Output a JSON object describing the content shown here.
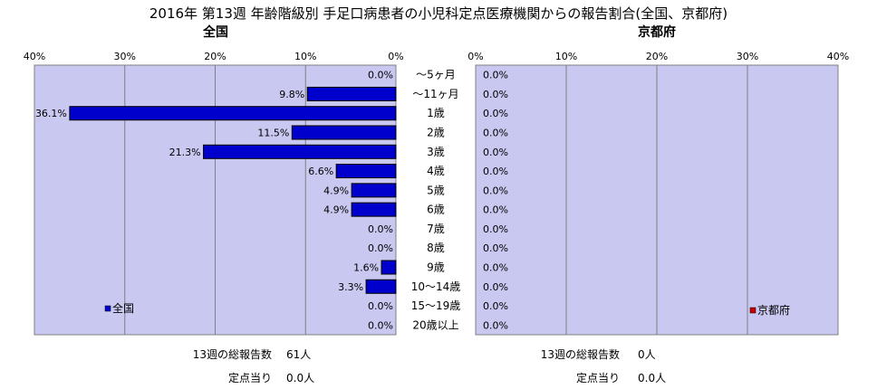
{
  "title": "2016年 第13週 年齢階級別 手足口病患者の小児科定点医療機関からの報告割合(全国、京都府)",
  "chart_data": {
    "type": "bar",
    "categories": [
      "～5ヶ月",
      "～11ヶ月",
      "1歳",
      "2歳",
      "3歳",
      "4歳",
      "5歳",
      "6歳",
      "7歳",
      "8歳",
      "9歳",
      "10～14歳",
      "15～19歳",
      "20歳以上"
    ],
    "xlim": [
      0,
      40
    ],
    "ticks": [
      "0%",
      "10%",
      "20%",
      "30%",
      "40%"
    ],
    "series": [
      {
        "name": "全国",
        "panel_title": "全国",
        "color": "#0000cc",
        "values": [
          0.0,
          9.8,
          36.1,
          11.5,
          21.3,
          6.6,
          4.9,
          4.9,
          0.0,
          0.0,
          1.6,
          3.3,
          0.0,
          0.0
        ],
        "value_labels": [
          "0.0%",
          "9.8%",
          "36.1%",
          "11.5%",
          "21.3%",
          "6.6%",
          "4.9%",
          "4.9%",
          "0.0%",
          "0.0%",
          "1.6%",
          "3.3%",
          "0.0%",
          "0.0%"
        ]
      },
      {
        "name": "京都府",
        "panel_title": "京都府",
        "color": "#cc0000",
        "values": [
          0.0,
          0.0,
          0.0,
          0.0,
          0.0,
          0.0,
          0.0,
          0.0,
          0.0,
          0.0,
          0.0,
          0.0,
          0.0,
          0.0
        ],
        "value_labels": [
          "0.0%",
          "0.0%",
          "0.0%",
          "0.0%",
          "0.0%",
          "0.0%",
          "0.0%",
          "0.0%",
          "0.0%",
          "0.0%",
          "0.0%",
          "0.0%",
          "0.0%",
          "0.0%"
        ]
      }
    ],
    "plot_background": "#c8c8f0",
    "gridlines": true
  },
  "footer": {
    "national": {
      "total_label": "13週の総報告数",
      "total_value": "61人",
      "per_label": "定点当り",
      "per_value": "0.0人"
    },
    "kyoto": {
      "total_label": "13週の総報告数",
      "total_value": "0人",
      "per_label": "定点当り",
      "per_value": "0.0人"
    }
  }
}
